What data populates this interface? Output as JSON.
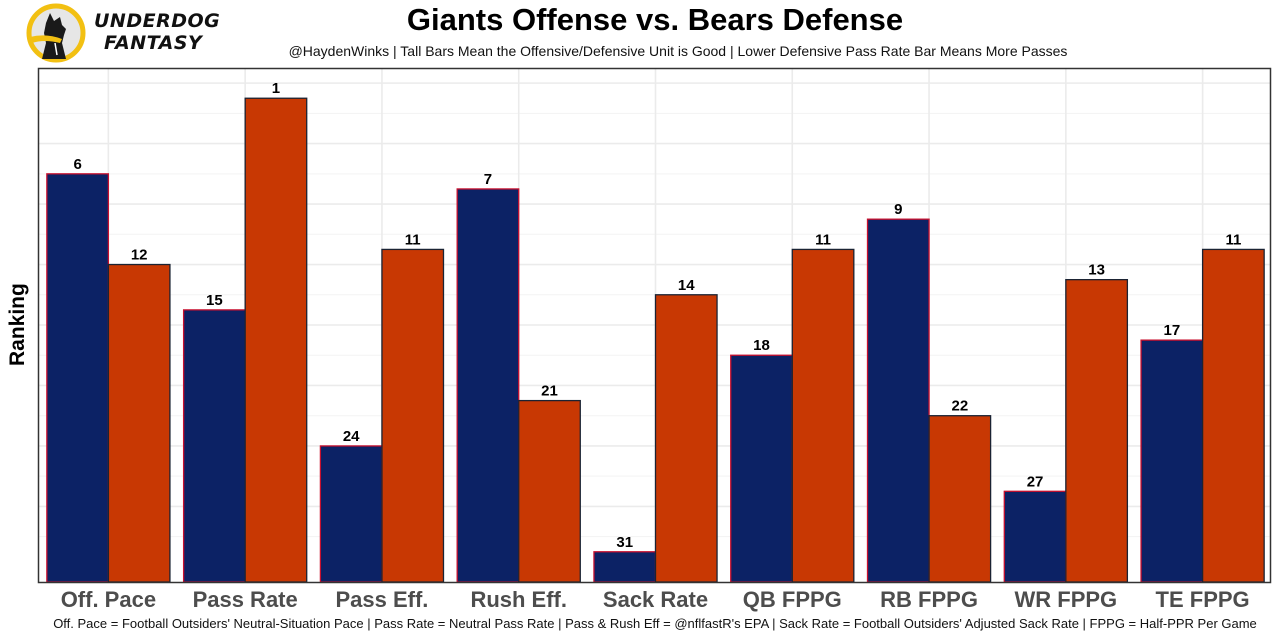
{
  "brand": {
    "line1": "UNDERDOG",
    "line2": "FANTASY",
    "logo_icon": "underdog-dog-logo-icon",
    "logo_colors": {
      "ring": "#f2c012",
      "dog": "#1a1a1a",
      "background": "#e6e6e6"
    }
  },
  "chart_data": {
    "type": "bar",
    "title": "Giants Offense vs. Bears Defense",
    "subtitle": "@HaydenWinks | Tall Bars Mean the Offensive/Defensive Unit is Good | Lower Defensive Pass Rate Bar Means More Passes",
    "caption": "Off. Pace = Football Outsiders' Neutral-Situation Pace | Pass Rate = Neutral Pass Rate | Pass & Rush Eff = @nflfastR's EPA | Sack Rate = Football Outsiders' Adjusted Sack Rate | FPPG = Half-PPR Per Game",
    "xlabel": "",
    "ylabel": "Ranking",
    "categories": [
      "Off. Pace",
      "Pass Rate",
      "Pass Eff.",
      "Rush Eff.",
      "Sack Rate",
      "QB FPPG",
      "RB FPPG",
      "WR FPPG",
      "TE FPPG"
    ],
    "series": [
      {
        "name": "Giants Offense",
        "color": "#0c2265",
        "outline": "#c8102e",
        "ranks": [
          6,
          15,
          24,
          7,
          31,
          18,
          9,
          27,
          17
        ]
      },
      {
        "name": "Bears Defense",
        "color": "#c83803",
        "outline": "#1b2333",
        "ranks": [
          12,
          1,
          11,
          21,
          14,
          11,
          22,
          13,
          11
        ]
      }
    ],
    "value_mapping": "bar height = 33 - rank (rank 1 tallest)",
    "ylim": [
      0,
      34
    ],
    "y_tick_labels_shown": false,
    "grid": true,
    "legend": "none"
  }
}
